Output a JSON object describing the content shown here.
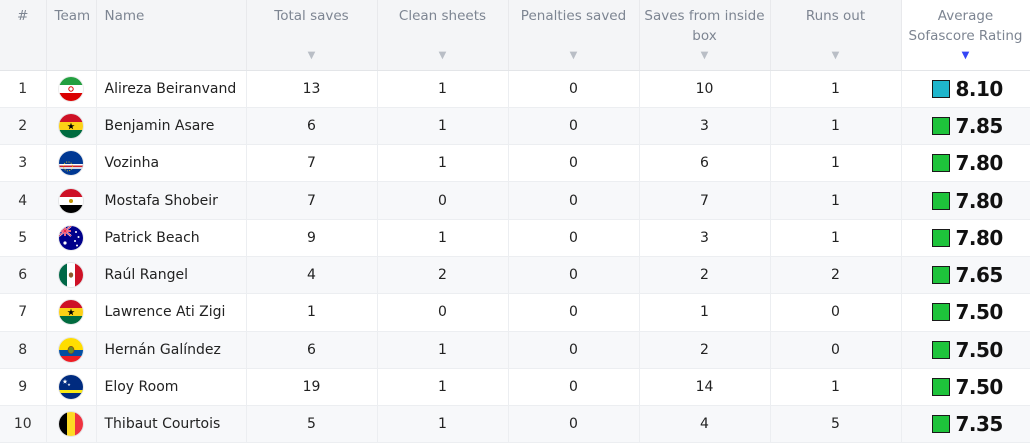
{
  "headers": {
    "rank": "#",
    "team": "Team",
    "name": "Name",
    "total_saves": "Total saves",
    "clean_sheets": "Clean sheets",
    "penalties_saved": "Penalties saved",
    "saves_inside_box": "Saves from inside box",
    "runs_out": "Runs out",
    "avg_rating": "Average Sofascore Rating"
  },
  "sort_icons": {
    "inactive": "sort-down-triangle-icon",
    "active": "sort-down-triangle-icon-active"
  },
  "colors": {
    "rating_excellent": "#1fb6cc",
    "rating_great": "#1ec33b",
    "sort_active": "#3446f5"
  },
  "rows": [
    {
      "rank": "1",
      "flag": "iran-flag-icon",
      "name": "Alireza Beiranvand",
      "total_saves": "13",
      "clean_sheets": "1",
      "penalties_saved": "0",
      "saves_inside_box": "10",
      "runs_out": "1",
      "rating": "8.10",
      "rating_color": "#1fb6cc"
    },
    {
      "rank": "2",
      "flag": "ghana-flag-icon",
      "name": "Benjamin Asare",
      "total_saves": "6",
      "clean_sheets": "1",
      "penalties_saved": "0",
      "saves_inside_box": "3",
      "runs_out": "1",
      "rating": "7.85",
      "rating_color": "#1ec33b"
    },
    {
      "rank": "3",
      "flag": "cape-verde-flag-icon",
      "name": "Vozinha",
      "total_saves": "7",
      "clean_sheets": "1",
      "penalties_saved": "0",
      "saves_inside_box": "6",
      "runs_out": "1",
      "rating": "7.80",
      "rating_color": "#1ec33b"
    },
    {
      "rank": "4",
      "flag": "egypt-flag-icon",
      "name": "Mostafa Shobeir",
      "total_saves": "7",
      "clean_sheets": "0",
      "penalties_saved": "0",
      "saves_inside_box": "7",
      "runs_out": "1",
      "rating": "7.80",
      "rating_color": "#1ec33b"
    },
    {
      "rank": "5",
      "flag": "australia-flag-icon",
      "name": "Patrick Beach",
      "total_saves": "9",
      "clean_sheets": "1",
      "penalties_saved": "0",
      "saves_inside_box": "3",
      "runs_out": "1",
      "rating": "7.80",
      "rating_color": "#1ec33b"
    },
    {
      "rank": "6",
      "flag": "mexico-flag-icon",
      "name": "Raúl Rangel",
      "total_saves": "4",
      "clean_sheets": "2",
      "penalties_saved": "0",
      "saves_inside_box": "2",
      "runs_out": "2",
      "rating": "7.65",
      "rating_color": "#1ec33b"
    },
    {
      "rank": "7",
      "flag": "ghana-flag-icon",
      "name": "Lawrence Ati Zigi",
      "total_saves": "1",
      "clean_sheets": "0",
      "penalties_saved": "0",
      "saves_inside_box": "1",
      "runs_out": "0",
      "rating": "7.50",
      "rating_color": "#1ec33b"
    },
    {
      "rank": "8",
      "flag": "ecuador-flag-icon",
      "name": "Hernán Galíndez",
      "total_saves": "6",
      "clean_sheets": "1",
      "penalties_saved": "0",
      "saves_inside_box": "2",
      "runs_out": "0",
      "rating": "7.50",
      "rating_color": "#1ec33b"
    },
    {
      "rank": "9",
      "flag": "curacao-flag-icon",
      "name": "Eloy Room",
      "total_saves": "19",
      "clean_sheets": "1",
      "penalties_saved": "0",
      "saves_inside_box": "14",
      "runs_out": "1",
      "rating": "7.50",
      "rating_color": "#1ec33b"
    },
    {
      "rank": "10",
      "flag": "belgium-flag-icon",
      "name": "Thibaut Courtois",
      "total_saves": "5",
      "clean_sheets": "1",
      "penalties_saved": "0",
      "saves_inside_box": "4",
      "runs_out": "5",
      "rating": "7.35",
      "rating_color": "#1ec33b"
    }
  ]
}
